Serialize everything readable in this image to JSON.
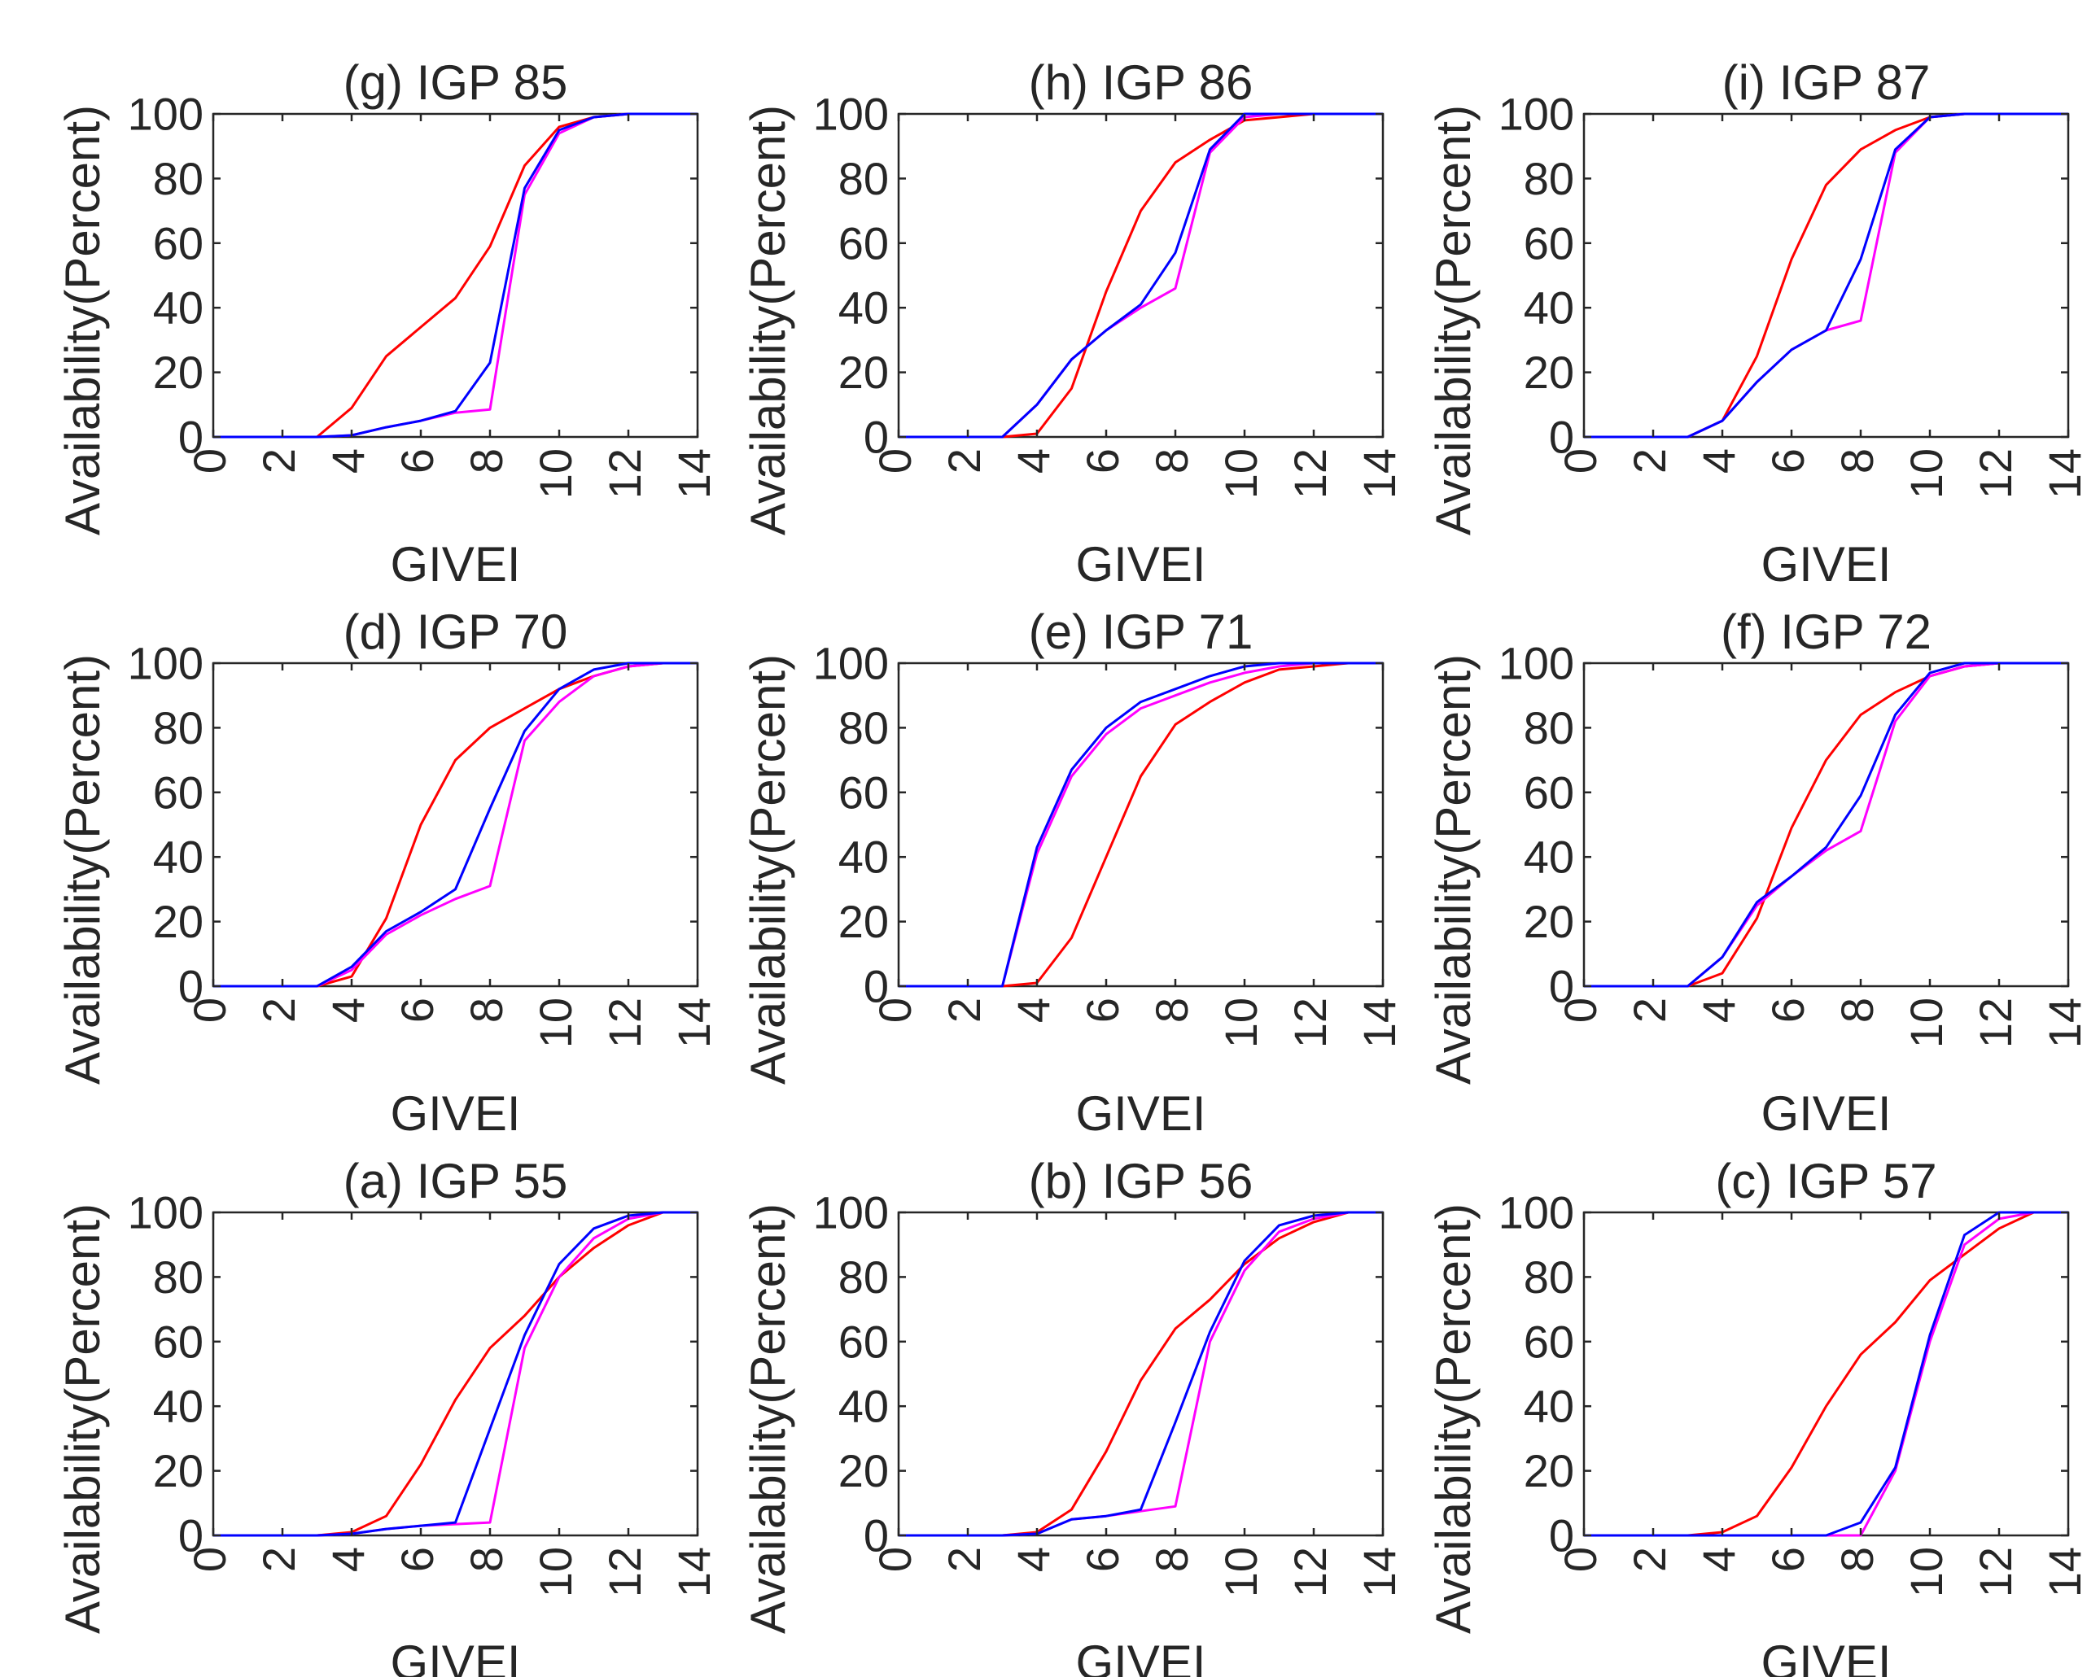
{
  "colors": {
    "red": "#ff0000",
    "blue": "#0000ff",
    "magenta": "#ff00ff",
    "axis": "#262626"
  },
  "chart_data": [
    {
      "type": "line",
      "title": "(g) IGP 85",
      "xlabel": "GIVEI",
      "ylabel": "Availability(Percent)",
      "xlim": [
        0,
        14
      ],
      "ylim": [
        0,
        100
      ],
      "xticks": [
        "0",
        "2",
        "4",
        "6",
        "8",
        "10",
        "12",
        "14"
      ],
      "yticks": [
        "0",
        "20",
        "40",
        "60",
        "80",
        "100"
      ],
      "x": [
        0,
        1,
        2,
        3,
        4,
        5,
        6,
        7,
        8,
        9,
        10,
        11,
        12,
        13,
        14
      ],
      "series": [
        {
          "name": "red",
          "color": "#ff0000",
          "values": [
            0,
            0,
            0,
            0,
            9,
            25,
            34,
            43,
            59,
            84,
            96,
            99,
            100,
            100,
            100
          ]
        },
        {
          "name": "magenta",
          "color": "#ff00ff",
          "values": [
            0,
            0,
            0,
            0,
            0.5,
            3,
            5,
            7.5,
            8.5,
            75,
            94,
            99,
            100,
            100,
            100
          ]
        },
        {
          "name": "blue",
          "color": "#0000ff",
          "values": [
            0,
            0,
            0,
            0,
            0.5,
            3,
            5,
            8,
            23,
            77,
            95,
            99,
            100,
            100,
            100
          ]
        }
      ]
    },
    {
      "type": "line",
      "title": "(h) IGP 86",
      "xlabel": "GIVEI",
      "ylabel": "Availability(Percent)",
      "xlim": [
        0,
        14
      ],
      "ylim": [
        0,
        100
      ],
      "xticks": [
        "0",
        "2",
        "4",
        "6",
        "8",
        "10",
        "12",
        "14"
      ],
      "yticks": [
        "0",
        "20",
        "40",
        "60",
        "80",
        "100"
      ],
      "x": [
        0,
        1,
        2,
        3,
        4,
        5,
        6,
        7,
        8,
        9,
        10,
        11,
        12,
        13,
        14
      ],
      "series": [
        {
          "name": "red",
          "color": "#ff0000",
          "values": [
            0,
            0,
            0,
            0,
            1,
            15,
            45,
            70,
            85,
            92,
            98,
            99,
            100,
            100,
            100
          ]
        },
        {
          "name": "magenta",
          "color": "#ff00ff",
          "values": [
            0,
            0,
            0,
            0,
            10,
            24,
            33,
            40,
            46,
            88,
            99,
            100,
            100,
            100,
            100
          ]
        },
        {
          "name": "blue",
          "color": "#0000ff",
          "values": [
            0,
            0,
            0,
            0,
            10,
            24,
            33,
            41,
            57,
            89,
            100,
            100,
            100,
            100,
            100
          ]
        }
      ]
    },
    {
      "type": "line",
      "title": "(i) IGP 87",
      "xlabel": "GIVEI",
      "ylabel": "Availability(Percent)",
      "xlim": [
        0,
        14
      ],
      "ylim": [
        0,
        100
      ],
      "xticks": [
        "0",
        "2",
        "4",
        "6",
        "8",
        "10",
        "12",
        "14"
      ],
      "yticks": [
        "0",
        "20",
        "40",
        "60",
        "80",
        "100"
      ],
      "x": [
        0,
        1,
        2,
        3,
        4,
        5,
        6,
        7,
        8,
        9,
        10,
        11,
        12,
        13,
        14
      ],
      "series": [
        {
          "name": "red",
          "color": "#ff0000",
          "values": [
            0,
            0,
            0,
            0,
            5,
            25,
            55,
            78,
            89,
            95,
            99,
            100,
            100,
            100,
            100
          ]
        },
        {
          "name": "magenta",
          "color": "#ff00ff",
          "values": [
            0,
            0,
            0,
            0,
            5,
            17,
            27,
            33,
            36,
            88,
            99,
            100,
            100,
            100,
            100
          ]
        },
        {
          "name": "blue",
          "color": "#0000ff",
          "values": [
            0,
            0,
            0,
            0,
            5,
            17,
            27,
            33,
            55,
            89,
            99,
            100,
            100,
            100,
            100
          ]
        }
      ]
    },
    {
      "type": "line",
      "title": "(d) IGP 70",
      "xlabel": "GIVEI",
      "ylabel": "Availability(Percent)",
      "xlim": [
        0,
        14
      ],
      "ylim": [
        0,
        100
      ],
      "xticks": [
        "0",
        "2",
        "4",
        "6",
        "8",
        "10",
        "12",
        "14"
      ],
      "yticks": [
        "0",
        "20",
        "40",
        "60",
        "80",
        "100"
      ],
      "x": [
        0,
        1,
        2,
        3,
        4,
        5,
        6,
        7,
        8,
        9,
        10,
        11,
        12,
        13,
        14
      ],
      "series": [
        {
          "name": "red",
          "color": "#ff0000",
          "values": [
            0,
            0,
            0,
            0,
            3,
            21,
            50,
            70,
            80,
            86,
            92,
            96,
            99,
            100,
            100
          ]
        },
        {
          "name": "magenta",
          "color": "#ff00ff",
          "values": [
            0,
            0,
            0,
            0,
            5,
            16,
            22,
            27,
            31,
            76,
            88,
            96,
            99,
            100,
            100
          ]
        },
        {
          "name": "blue",
          "color": "#0000ff",
          "values": [
            0,
            0,
            0,
            0,
            6,
            17,
            23,
            30,
            55,
            79,
            92,
            98,
            100,
            100,
            100
          ]
        }
      ]
    },
    {
      "type": "line",
      "title": "(e) IGP 71",
      "xlabel": "GIVEI",
      "ylabel": "Availability(Percent)",
      "xlim": [
        0,
        14
      ],
      "ylim": [
        0,
        100
      ],
      "xticks": [
        "0",
        "2",
        "4",
        "6",
        "8",
        "10",
        "12",
        "14"
      ],
      "yticks": [
        "0",
        "20",
        "40",
        "60",
        "80",
        "100"
      ],
      "x": [
        0,
        1,
        2,
        3,
        4,
        5,
        6,
        7,
        8,
        9,
        10,
        11,
        12,
        13,
        14
      ],
      "series": [
        {
          "name": "red",
          "color": "#ff0000",
          "values": [
            0,
            0,
            0,
            0,
            1,
            15,
            40,
            65,
            81,
            88,
            94,
            98,
            99,
            100,
            100
          ]
        },
        {
          "name": "magenta",
          "color": "#ff00ff",
          "values": [
            0,
            0,
            0,
            0,
            41,
            65,
            78,
            86,
            90,
            94,
            97,
            99,
            100,
            100,
            100
          ]
        },
        {
          "name": "blue",
          "color": "#0000ff",
          "values": [
            0,
            0,
            0,
            0,
            43,
            67,
            80,
            88,
            92,
            96,
            99,
            100,
            100,
            100,
            100
          ]
        }
      ]
    },
    {
      "type": "line",
      "title": "(f) IGP 72",
      "xlabel": "GIVEI",
      "ylabel": "Availability(Percent)",
      "xlim": [
        0,
        14
      ],
      "ylim": [
        0,
        100
      ],
      "xticks": [
        "0",
        "2",
        "4",
        "6",
        "8",
        "10",
        "12",
        "14"
      ],
      "yticks": [
        "0",
        "20",
        "40",
        "60",
        "80",
        "100"
      ],
      "x": [
        0,
        1,
        2,
        3,
        4,
        5,
        6,
        7,
        8,
        9,
        10,
        11,
        12,
        13,
        14
      ],
      "series": [
        {
          "name": "red",
          "color": "#ff0000",
          "values": [
            0,
            0,
            0,
            0,
            4,
            21,
            49,
            70,
            84,
            91,
            96,
            99,
            100,
            100,
            100
          ]
        },
        {
          "name": "magenta",
          "color": "#ff00ff",
          "values": [
            0,
            0,
            0,
            0,
            9,
            25,
            34,
            42,
            48,
            82,
            96,
            99,
            100,
            100,
            100
          ]
        },
        {
          "name": "blue",
          "color": "#0000ff",
          "values": [
            0,
            0,
            0,
            0,
            9,
            26,
            34,
            43,
            59,
            84,
            97,
            100,
            100,
            100,
            100
          ]
        }
      ]
    },
    {
      "type": "line",
      "title": "(a) IGP 55",
      "xlabel": "GIVEI",
      "ylabel": "Availability(Percent)",
      "xlim": [
        0,
        14
      ],
      "ylim": [
        0,
        100
      ],
      "xticks": [
        "0",
        "2",
        "4",
        "6",
        "8",
        "10",
        "12",
        "14"
      ],
      "yticks": [
        "0",
        "20",
        "40",
        "60",
        "80",
        "100"
      ],
      "x": [
        0,
        1,
        2,
        3,
        4,
        5,
        6,
        7,
        8,
        9,
        10,
        11,
        12,
        13,
        14
      ],
      "series": [
        {
          "name": "red",
          "color": "#ff0000",
          "values": [
            0,
            0,
            0,
            0,
            1,
            6,
            22,
            42,
            58,
            68,
            80,
            89,
            96,
            100,
            100
          ]
        },
        {
          "name": "magenta",
          "color": "#ff00ff",
          "values": [
            0,
            0,
            0,
            0,
            0.5,
            2,
            3,
            3.5,
            4,
            58,
            80,
            92,
            98,
            100,
            100
          ]
        },
        {
          "name": "blue",
          "color": "#0000ff",
          "values": [
            0,
            0,
            0,
            0,
            0.5,
            2,
            3,
            4,
            33,
            62,
            84,
            95,
            99,
            100,
            100
          ]
        }
      ]
    },
    {
      "type": "line",
      "title": "(b) IGP 56",
      "xlabel": "GIVEI",
      "ylabel": "Availability(Percent)",
      "xlim": [
        0,
        14
      ],
      "ylim": [
        0,
        100
      ],
      "xticks": [
        "0",
        "2",
        "4",
        "6",
        "8",
        "10",
        "12",
        "14"
      ],
      "yticks": [
        "0",
        "20",
        "40",
        "60",
        "80",
        "100"
      ],
      "x": [
        0,
        1,
        2,
        3,
        4,
        5,
        6,
        7,
        8,
        9,
        10,
        11,
        12,
        13,
        14
      ],
      "series": [
        {
          "name": "red",
          "color": "#ff0000",
          "values": [
            0,
            0,
            0,
            0,
            1,
            8,
            26,
            48,
            64,
            73,
            84,
            92,
            97,
            100,
            100
          ]
        },
        {
          "name": "magenta",
          "color": "#ff00ff",
          "values": [
            0,
            0,
            0,
            0,
            0.5,
            5,
            6,
            7.5,
            9,
            60,
            82,
            94,
            98,
            100,
            100
          ]
        },
        {
          "name": "blue",
          "color": "#0000ff",
          "values": [
            0,
            0,
            0,
            0,
            0.5,
            5,
            6,
            8,
            35,
            63,
            85,
            96,
            99,
            100,
            100
          ]
        }
      ]
    },
    {
      "type": "line",
      "title": "(c) IGP 57",
      "xlabel": "GIVEI",
      "ylabel": "Availability(Percent)",
      "xlim": [
        0,
        14
      ],
      "ylim": [
        0,
        100
      ],
      "xticks": [
        "0",
        "2",
        "4",
        "6",
        "8",
        "10",
        "12",
        "14"
      ],
      "yticks": [
        "0",
        "20",
        "40",
        "60",
        "80",
        "100"
      ],
      "x": [
        0,
        1,
        2,
        3,
        4,
        5,
        6,
        7,
        8,
        9,
        10,
        11,
        12,
        13,
        14
      ],
      "series": [
        {
          "name": "red",
          "color": "#ff0000",
          "values": [
            0,
            0,
            0,
            0,
            1,
            6,
            21,
            40,
            56,
            66,
            79,
            87,
            95,
            100,
            100
          ]
        },
        {
          "name": "magenta",
          "color": "#ff00ff",
          "values": [
            0,
            0,
            0,
            0,
            0,
            0,
            0,
            0,
            0,
            20,
            60,
            90,
            98,
            100,
            100
          ]
        },
        {
          "name": "blue",
          "color": "#0000ff",
          "values": [
            0,
            0,
            0,
            0,
            0,
            0,
            0,
            0,
            4,
            21,
            62,
            93,
            100,
            100,
            100
          ]
        }
      ]
    }
  ]
}
